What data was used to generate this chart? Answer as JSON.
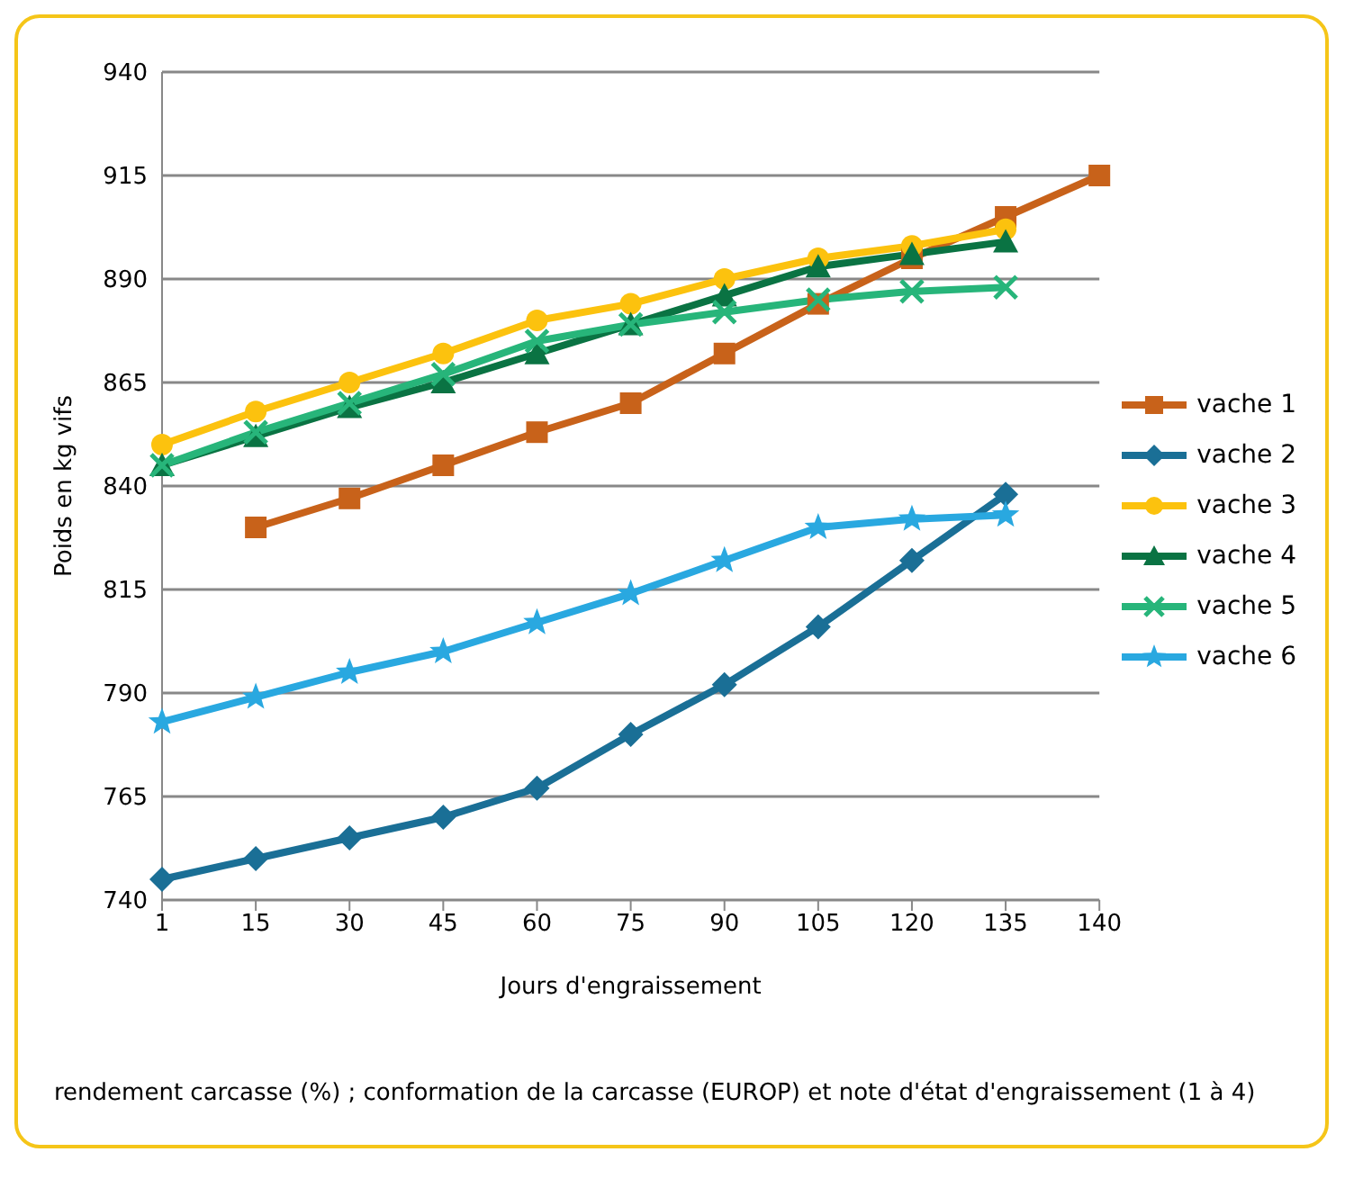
{
  "chart_data": {
    "type": "line",
    "ylabel": "Poids en kg vifs",
    "xlabel": "Jours d'engraissement",
    "categories": [
      "1",
      "15",
      "30",
      "45",
      "60",
      "75",
      "90",
      "105",
      "120",
      "135",
      "140"
    ],
    "series": [
      {
        "name": "vache 1",
        "color": "#c8621a",
        "marker": "square",
        "values": [
          null,
          830,
          837,
          845,
          853,
          860,
          872,
          884,
          895,
          905,
          915
        ]
      },
      {
        "name": "vache 2",
        "color": "#1a6f96",
        "marker": "diamond",
        "values": [
          745,
          750,
          755,
          760,
          767,
          780,
          792,
          806,
          822,
          838,
          null
        ]
      },
      {
        "name": "vache 3",
        "color": "#fcc20e",
        "marker": "circle",
        "values": [
          850,
          858,
          865,
          872,
          880,
          884,
          890,
          895,
          898,
          902,
          null
        ]
      },
      {
        "name": "vache 4",
        "color": "#0a7343",
        "marker": "triangle",
        "values": [
          845,
          852,
          859,
          865,
          872,
          879,
          886,
          893,
          896,
          899,
          null
        ]
      },
      {
        "name": "vache 5",
        "color": "#27b57a",
        "marker": "cross",
        "values": [
          845,
          853,
          860,
          867,
          875,
          879,
          882,
          885,
          887,
          888,
          null
        ]
      },
      {
        "name": "vache 6",
        "color": "#29a8e0",
        "marker": "star",
        "values": [
          783,
          789,
          795,
          800,
          807,
          814,
          822,
          830,
          832,
          833,
          null
        ]
      }
    ],
    "ylim": [
      740,
      940
    ],
    "yticks": [
      740,
      765,
      790,
      815,
      840,
      865,
      890,
      915,
      940
    ],
    "grid": "y",
    "legend": "right",
    "annotations": [
      "rendement carcasse (%) ; conformation de la carcasse (EUROP) et note d'état d'engraissement (1 à 4)"
    ]
  }
}
